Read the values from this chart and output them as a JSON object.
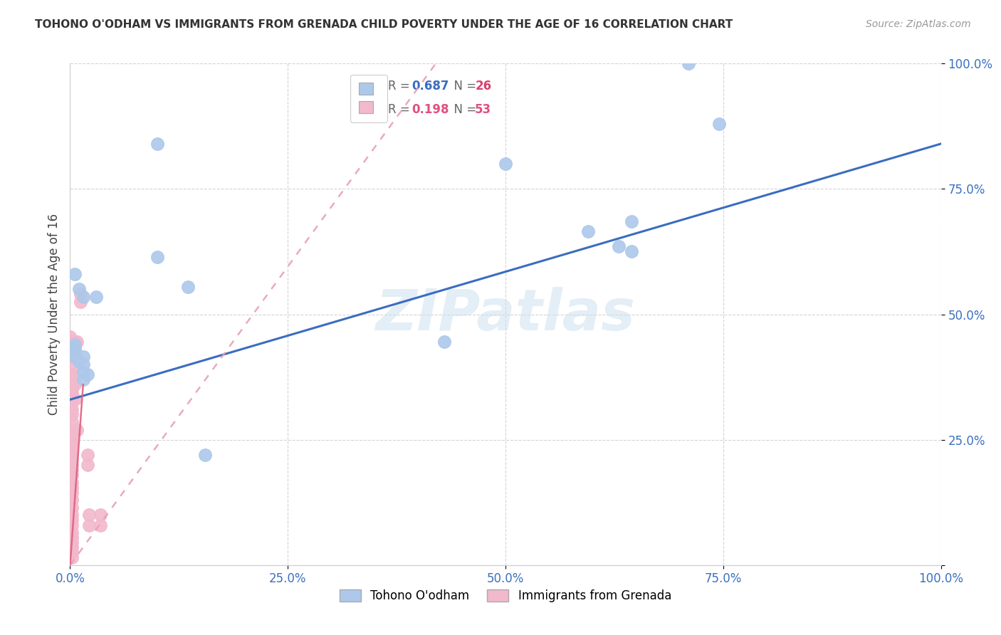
{
  "title": "TOHONO O'ODHAM VS IMMIGRANTS FROM GRENADA CHILD POVERTY UNDER THE AGE OF 16 CORRELATION CHART",
  "source": "Source: ZipAtlas.com",
  "ylabel": "Child Poverty Under the Age of 16",
  "watermark": "ZIPatlas",
  "blue_R": 0.687,
  "blue_N": 26,
  "pink_R": 0.198,
  "pink_N": 53,
  "blue_color": "#adc8ea",
  "pink_color": "#f2b8cb",
  "blue_line_color": "#3a6dbf",
  "pink_line_color": "#e8a0b8",
  "legend_R_color": "#3a6dbf",
  "legend_N_color": "#d94070",
  "blue_points": [
    [
      0.005,
      0.58
    ],
    [
      0.01,
      0.55
    ],
    [
      0.015,
      0.535
    ],
    [
      0.03,
      0.535
    ],
    [
      0.005,
      0.435
    ],
    [
      0.005,
      0.415
    ],
    [
      0.01,
      0.405
    ],
    [
      0.015,
      0.415
    ],
    [
      0.015,
      0.4
    ],
    [
      0.015,
      0.385
    ],
    [
      0.02,
      0.38
    ],
    [
      0.015,
      0.37
    ],
    [
      0.005,
      0.44
    ],
    [
      0.005,
      0.43
    ],
    [
      0.1,
      0.615
    ],
    [
      0.135,
      0.555
    ],
    [
      0.155,
      0.22
    ],
    [
      0.43,
      0.445
    ],
    [
      0.5,
      0.8
    ],
    [
      0.595,
      0.665
    ],
    [
      0.63,
      0.635
    ],
    [
      0.645,
      0.625
    ],
    [
      0.645,
      0.685
    ],
    [
      0.71,
      1.0
    ],
    [
      0.745,
      0.88
    ],
    [
      0.1,
      0.84
    ]
  ],
  "pink_points": [
    [
      0.0,
      0.455
    ],
    [
      0.0,
      0.445
    ],
    [
      0.0,
      0.43
    ],
    [
      0.0,
      0.415
    ],
    [
      0.002,
      0.38
    ],
    [
      0.002,
      0.37
    ],
    [
      0.002,
      0.355
    ],
    [
      0.002,
      0.345
    ],
    [
      0.002,
      0.335
    ],
    [
      0.002,
      0.325
    ],
    [
      0.002,
      0.31
    ],
    [
      0.002,
      0.3
    ],
    [
      0.002,
      0.285
    ],
    [
      0.002,
      0.27
    ],
    [
      0.002,
      0.26
    ],
    [
      0.002,
      0.25
    ],
    [
      0.002,
      0.24
    ],
    [
      0.002,
      0.23
    ],
    [
      0.002,
      0.22
    ],
    [
      0.002,
      0.21
    ],
    [
      0.002,
      0.2
    ],
    [
      0.002,
      0.19
    ],
    [
      0.002,
      0.18
    ],
    [
      0.002,
      0.165
    ],
    [
      0.002,
      0.155
    ],
    [
      0.002,
      0.145
    ],
    [
      0.002,
      0.13
    ],
    [
      0.002,
      0.115
    ],
    [
      0.002,
      0.1
    ],
    [
      0.002,
      0.09
    ],
    [
      0.002,
      0.08
    ],
    [
      0.002,
      0.065
    ],
    [
      0.002,
      0.055
    ],
    [
      0.002,
      0.045
    ],
    [
      0.002,
      0.035
    ],
    [
      0.002,
      0.025
    ],
    [
      0.002,
      0.015
    ],
    [
      0.005,
      0.445
    ],
    [
      0.005,
      0.425
    ],
    [
      0.005,
      0.395
    ],
    [
      0.005,
      0.36
    ],
    [
      0.005,
      0.33
    ],
    [
      0.008,
      0.445
    ],
    [
      0.008,
      0.27
    ],
    [
      0.012,
      0.54
    ],
    [
      0.012,
      0.525
    ],
    [
      0.02,
      0.22
    ],
    [
      0.02,
      0.2
    ],
    [
      0.022,
      0.1
    ],
    [
      0.022,
      0.08
    ],
    [
      0.035,
      0.1
    ],
    [
      0.035,
      0.08
    ],
    [
      0.0,
      0.06
    ]
  ],
  "xlim": [
    0,
    1.0
  ],
  "ylim": [
    0,
    1.0
  ],
  "xticks": [
    0.0,
    0.25,
    0.5,
    0.75,
    1.0
  ],
  "xticklabels": [
    "0.0%",
    "25.0%",
    "50.0%",
    "75.0%",
    "100.0%"
  ],
  "yticks": [
    0.0,
    0.25,
    0.5,
    0.75,
    1.0
  ],
  "yticklabels": [
    "",
    "25.0%",
    "50.0%",
    "75.0%",
    "100.0%"
  ],
  "grid_color": "#d0d0d0",
  "background_color": "#ffffff",
  "blue_line_x": [
    0.0,
    1.0
  ],
  "blue_line_y": [
    0.33,
    0.84
  ],
  "pink_line_x": [
    0.0,
    0.42
  ],
  "pink_line_y": [
    0.0,
    1.0
  ]
}
